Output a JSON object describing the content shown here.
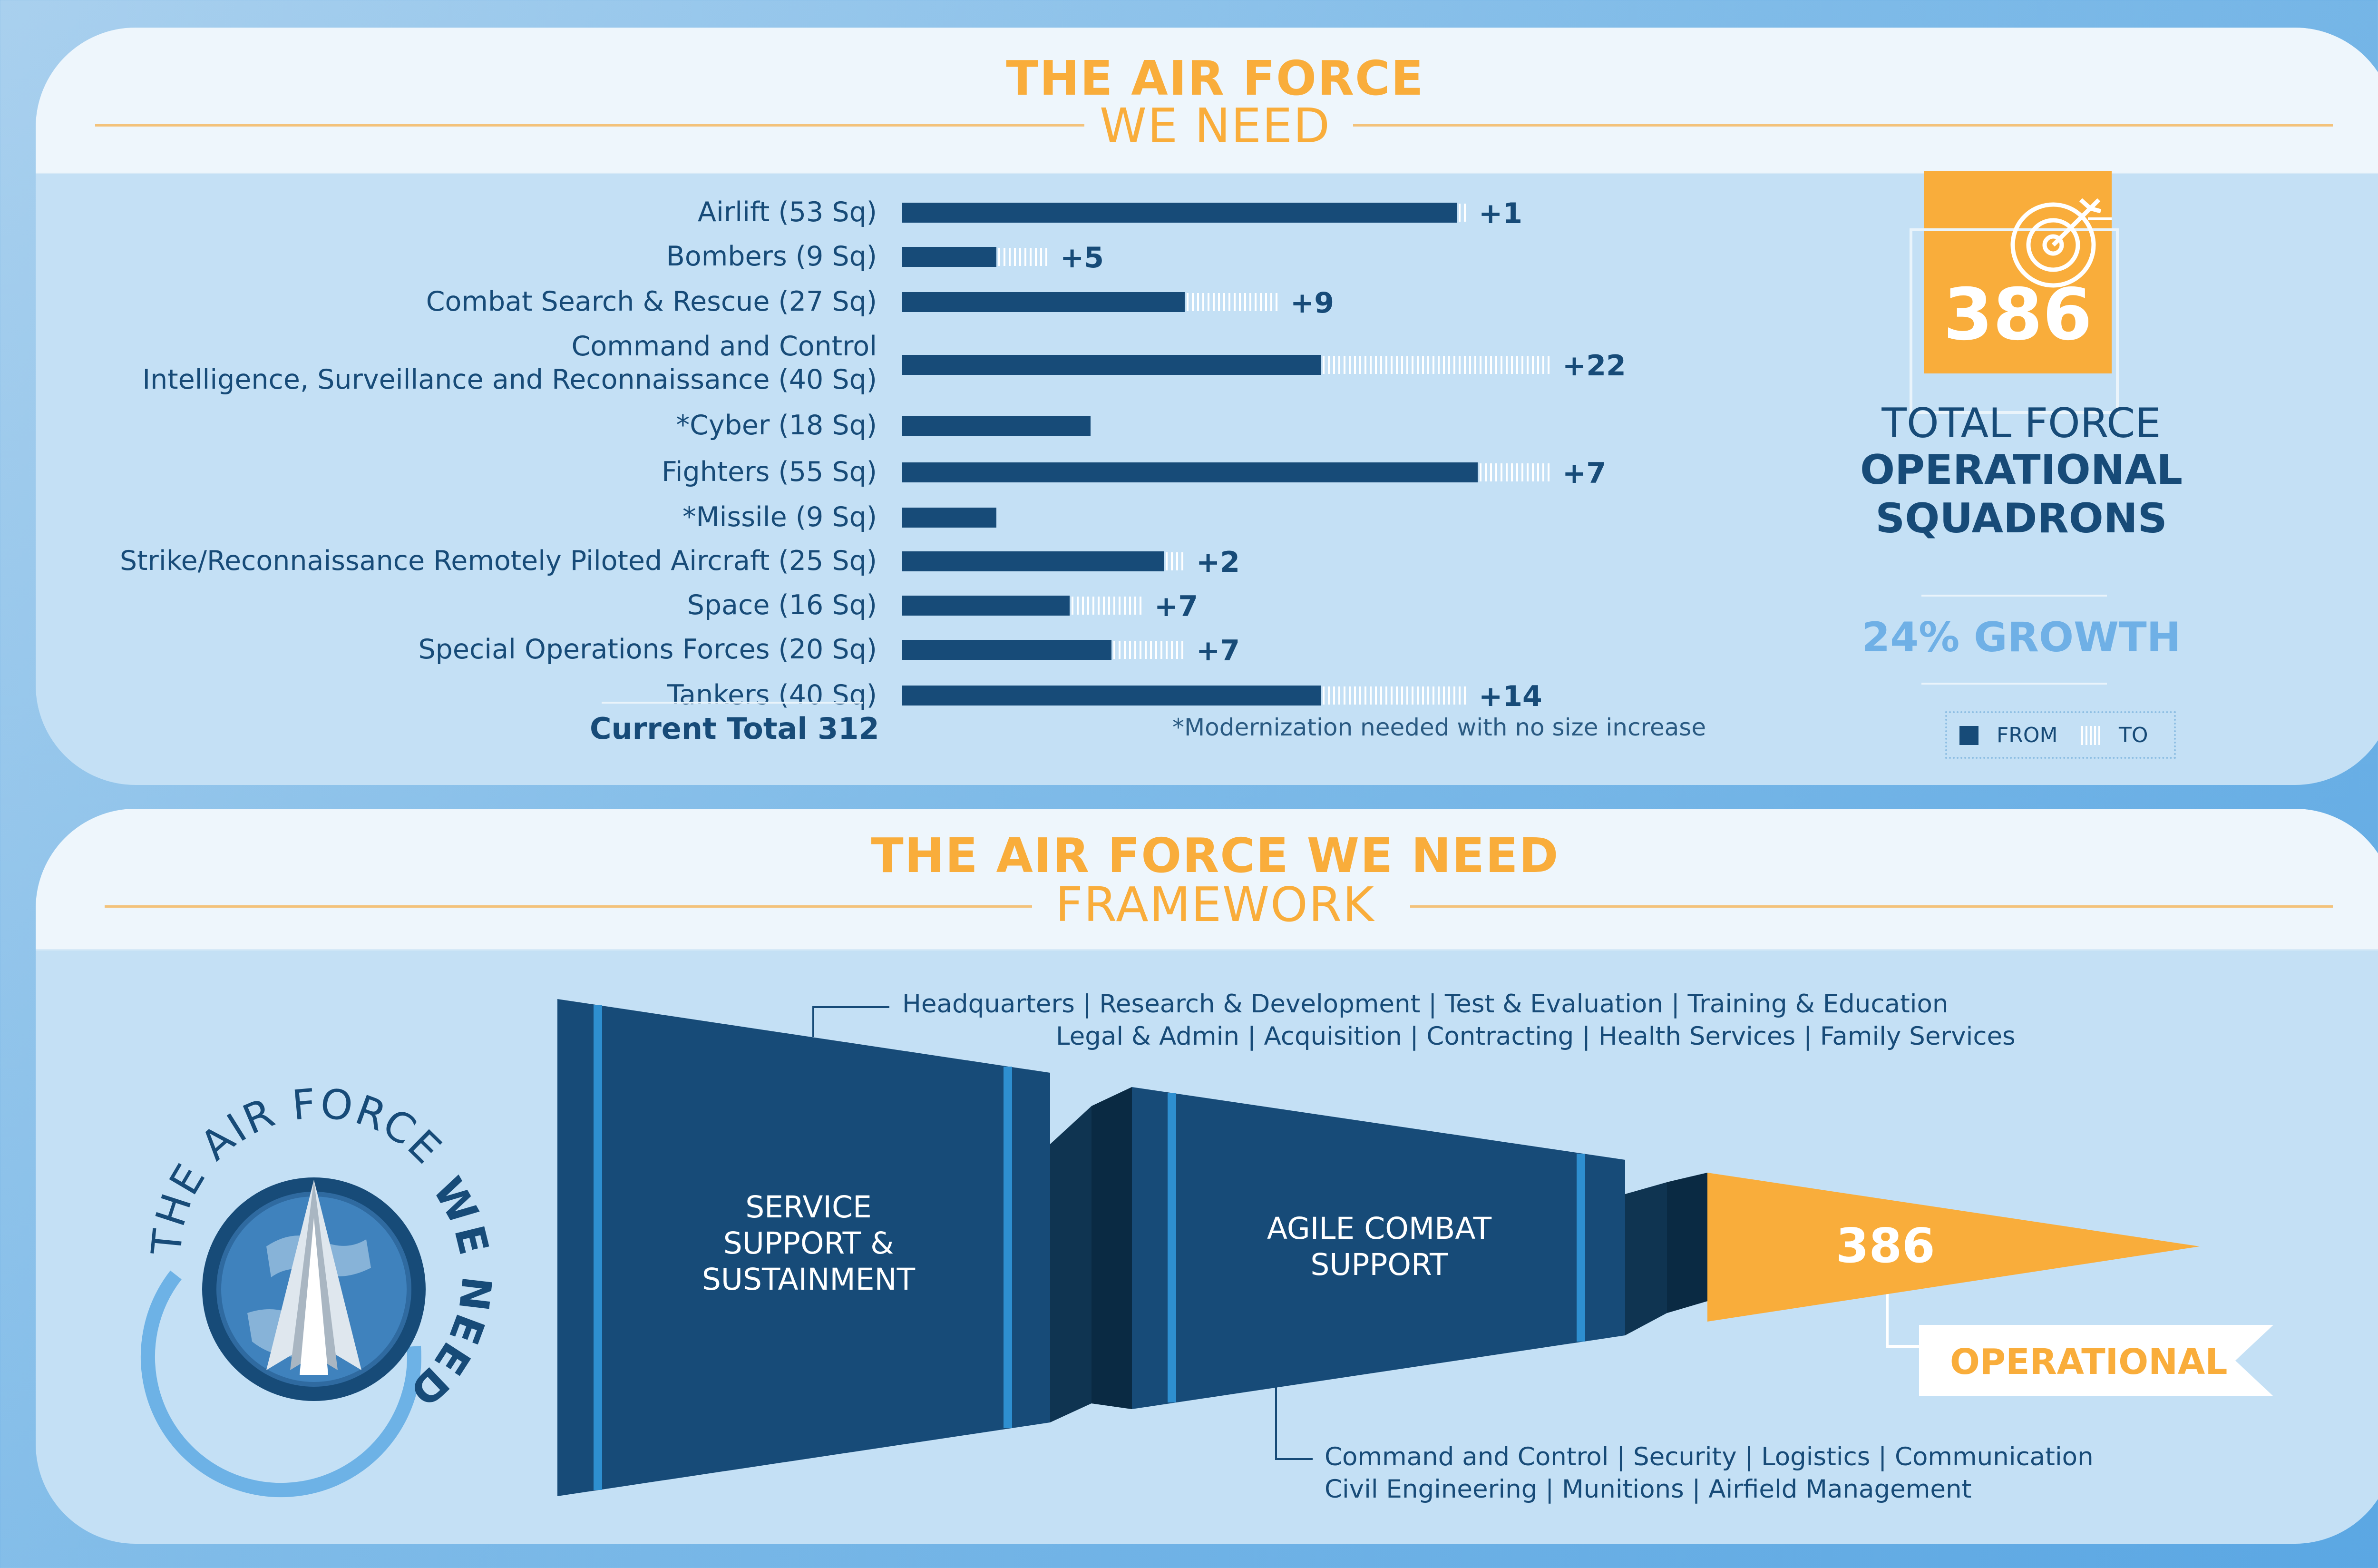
{
  "colors": {
    "navy": "#174b78",
    "bar_from": "#174b78",
    "bar_to": "#ffffff",
    "accent_orange": "#f9ad3b",
    "growth_blue": "#6fb0e6",
    "panel_bg": "#c4e0f5"
  },
  "top_panel": {
    "title_line1": "THE AIR FORCE",
    "title_line2": "WE NEED",
    "current_total": "Current Total 312",
    "footnote": "*Modernization needed with no size increase"
  },
  "summary": {
    "total": "386",
    "line1": "TOTAL FORCE",
    "line2": "OPERATIONAL",
    "line3": "SQUADRONS",
    "growth": "24% GROWTH",
    "legend_from": "FROM",
    "legend_to": "TO",
    "icon": "target-icon"
  },
  "chart_data": {
    "type": "bar",
    "orientation": "horizontal",
    "stacked": true,
    "categories": [
      "Airlift (53 Sq)",
      "Bombers (9 Sq)",
      "Combat Search & Rescue (27 Sq)",
      "Command and Control Intelligence, Surveillance and Reconnaissance (40 Sq)",
      "*Cyber (18 Sq)",
      "Fighters (55 Sq)",
      "*Missile (9 Sq)",
      "Strike/Reconnaissance Remotely Piloted Aircraft (25 Sq)",
      "Space (16 Sq)",
      "Special Operations Forces (20 Sq)",
      "Tankers (40 Sq)"
    ],
    "category_lines": [
      [
        "Airlift (53 Sq)"
      ],
      [
        "Bombers (9 Sq)"
      ],
      [
        "Combat Search & Rescue (27 Sq)"
      ],
      [
        "Command and Control",
        "Intelligence, Surveillance and Reconnaissance (40 Sq)"
      ],
      [
        "*Cyber (18 Sq)"
      ],
      [
        "Fighters (55 Sq)"
      ],
      [
        "*Missile (9 Sq)"
      ],
      [
        "Strike/Reconnaissance Remotely Piloted Aircraft (25 Sq)"
      ],
      [
        "Space (16 Sq)"
      ],
      [
        "Special Operations Forces (20 Sq)"
      ],
      [
        "Tankers (40 Sq)"
      ]
    ],
    "series": [
      {
        "name": "FROM",
        "values": [
          53,
          9,
          27,
          40,
          18,
          55,
          9,
          25,
          16,
          20,
          40
        ]
      },
      {
        "name": "TO",
        "values": [
          1,
          5,
          9,
          22,
          0,
          7,
          0,
          2,
          7,
          7,
          14
        ]
      }
    ],
    "increase_labels": [
      "+1",
      "+5",
      "+9",
      "+22",
      "",
      "+7",
      "",
      "+2",
      "+7",
      "+7",
      "+14"
    ],
    "legend": "bottom-right"
  },
  "framework": {
    "title_line1": "THE AIR FORCE WE NEED",
    "title_line2": "FRAMEWORK",
    "seal_text_top": "THE AIR FORCE",
    "seal_text_side": "WE NEED",
    "stage1_lines": [
      "SERVICE",
      "SUPPORT &",
      "SUSTAINMENT"
    ],
    "stage2_lines": [
      "AGILE COMBAT",
      "SUPPORT"
    ],
    "stage3_value": "386",
    "stage3_label": "OPERATIONAL",
    "top_categories_line1": "Headquarters  |  Research & Development  |  Test & Evaluation  |  Training & Education",
    "top_categories_line2": "Legal & Admin  |  Acquisition  |  Contracting  |   Health Services  |  Family Services",
    "bottom_categories_line1": "Command and Control  |  Security  |  Logistics  |  Communication",
    "bottom_categories_line2": "Civil Engineering  |  Munitions  |  Airfield Management"
  }
}
